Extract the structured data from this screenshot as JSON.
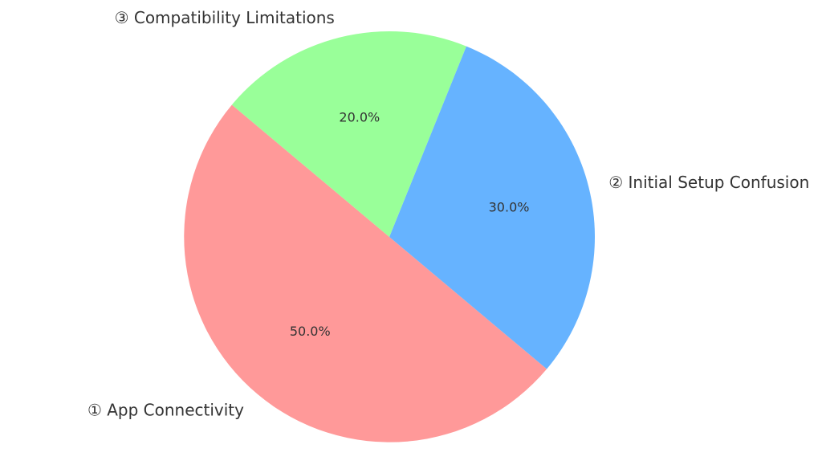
{
  "chart_data": {
    "type": "pie",
    "start_angle_deg": 140,
    "direction": "counterclockwise",
    "slices": [
      {
        "label": "① App Connectivity",
        "value": 50.0,
        "pct_text": "50.0%",
        "color": "#ff9999"
      },
      {
        "label": "② Initial Setup Confusion",
        "value": 30.0,
        "pct_text": "30.0%",
        "color": "#66b3ff"
      },
      {
        "label": "③ Compatibility Limitations",
        "value": 20.0,
        "pct_text": "20.0%",
        "color": "#99ff99"
      }
    ]
  }
}
